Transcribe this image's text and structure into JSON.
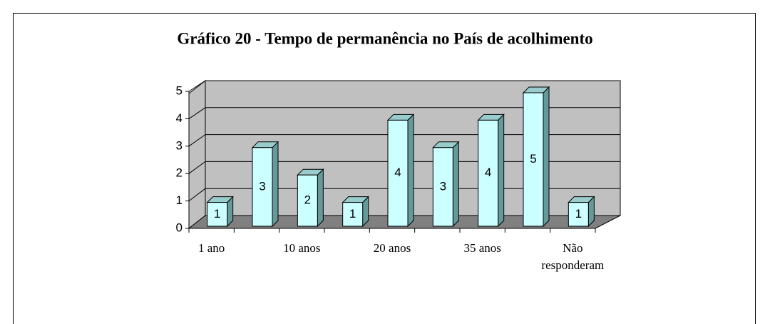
{
  "chart_data": {
    "type": "bar",
    "title": "Gráfico 20 - Tempo de permanência no País de acolhimento",
    "categories": [
      "1 ano",
      null,
      "10 anos",
      null,
      "20 anos",
      null,
      "35 anos",
      null,
      "Não responderam"
    ],
    "values": [
      1,
      3,
      2,
      1,
      4,
      3,
      4,
      5,
      1
    ],
    "color": "#ccffff",
    "ylim": [
      0,
      5
    ],
    "yticks": [
      0,
      1,
      2,
      3,
      4,
      5
    ],
    "grid": true
  }
}
